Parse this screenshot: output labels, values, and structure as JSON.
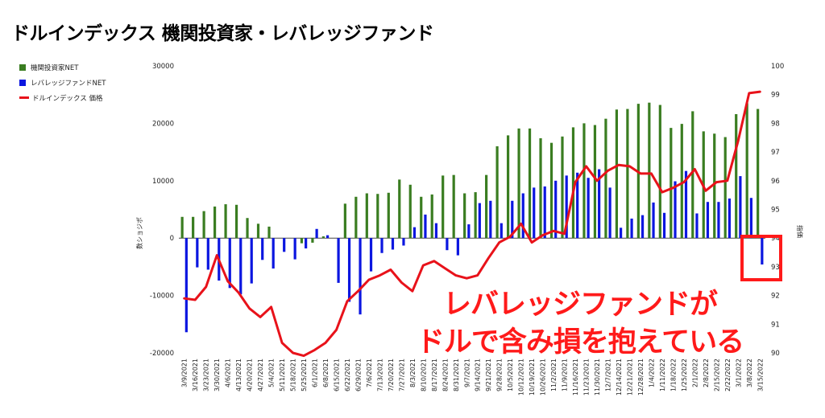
{
  "chart_data": {
    "type": "bar",
    "title": "ドルインデックス 機関投資家・レバレッジファンド",
    "ylabel": "数ショジポ",
    "y2label": "指価",
    "ylim": [
      -20000,
      30000
    ],
    "y2lim": [
      90,
      100
    ],
    "yticks": [
      "30000",
      "20000",
      "10000",
      "0",
      "-10000",
      "-20000"
    ],
    "y2ticks": [
      "100",
      "99",
      "98",
      "97",
      "96",
      "95",
      "94",
      "93",
      "92",
      "91",
      "90"
    ],
    "x": [
      "3/9/2021",
      "3/16/2021",
      "3/23/2021",
      "3/30/2021",
      "4/6/2021",
      "4/13/2021",
      "4/20/2021",
      "4/27/2021",
      "5/4/2021",
      "5/11/2021",
      "5/18/2021",
      "5/25/2021",
      "6/1/2021",
      "6/8/2021",
      "6/15/2021",
      "6/22/2021",
      "6/29/2021",
      "7/6/2021",
      "7/13/2021",
      "7/20/2021",
      "7/27/2021",
      "8/3/2021",
      "8/10/2021",
      "8/17/2021",
      "8/24/2021",
      "8/31/2021",
      "9/7/2021",
      "9/14/2021",
      "9/21/2021",
      "9/28/2021",
      "10/5/2021",
      "10/12/2021",
      "10/19/2021",
      "10/26/2021",
      "11/2/2021",
      "11/9/2021",
      "11/16/2021",
      "11/23/2021",
      "11/30/2021",
      "12/7/2021",
      "12/14/2021",
      "12/21/2021",
      "12/28/2021",
      "1/4/2022",
      "1/11/2022",
      "1/18/2022",
      "1/25/2022",
      "2/1/2022",
      "2/8/2022",
      "2/15/2022",
      "2/22/2022",
      "3/1/2022",
      "3/8/2022",
      "3/15/2022"
    ],
    "xtick_labels": [
      "3/9/2021",
      "3/16/2021",
      "3/23/2021",
      "3/30/2021",
      "4/6/2021",
      "4/13/2021",
      "4/20/2021",
      "4/27/2021",
      "5/4/2021",
      "5/11/2021",
      "5/18/2021",
      "5/25/2021",
      "6/1/2021",
      "6/8/2021",
      "6/15/2021",
      "6/22/2021",
      "6/29/2021",
      "7/6/2021",
      "7/13/2021",
      "7/20/2021",
      "7/27/2021",
      "8/3/2021",
      "8/10/2021",
      "8/17/2021",
      "8/24/2021",
      "8/31/2021",
      "9/7/2021",
      "9/14/2021",
      "9/21/2021",
      "9/28/2021",
      "10/5/2021",
      "10/12/2021",
      "10/19/2021",
      "10/26/2021",
      "11/2/2021",
      "11/9/2021",
      "11/16/2021",
      "11/23/2021",
      "11/30/2021",
      "12/7/2021",
      "12/14/2021",
      "12/21/2021",
      "12/28/2021",
      "1/4/2022",
      "1/11/2022",
      "1/18/2022",
      "1/25/2022",
      "2/1/2022",
      "2/8/2022",
      "2/15/2022",
      "2/22/2022",
      "3/1/2022",
      "3/8/2022",
      "3/15/2022"
    ],
    "series": [
      {
        "name": "機関投資家NET",
        "type": "bar",
        "axis": "left",
        "color": "#3a7d21",
        "values": [
          3700,
          3700,
          4700,
          5500,
          5900,
          5800,
          3500,
          2500,
          2000,
          0,
          0,
          -900,
          -800,
          300,
          0,
          6000,
          7200,
          7800,
          7700,
          7900,
          10200,
          9300,
          7200,
          7600,
          10900,
          11000,
          7800,
          8000,
          11000,
          16000,
          17900,
          19100,
          19100,
          17400,
          16600,
          17700,
          19300,
          20000,
          19700,
          20800,
          22400,
          22500,
          23400,
          23600,
          23200,
          19200,
          19900,
          22100,
          18600,
          18200,
          17600,
          21600,
          23500,
          22500
        ]
      },
      {
        "name": "レバレッジファンドNET",
        "type": "bar",
        "axis": "left",
        "color": "#0b16e0",
        "values": [
          -16400,
          -5100,
          -5500,
          -7400,
          -8700,
          -9800,
          -7900,
          -3800,
          -5300,
          -2400,
          -3700,
          -1800,
          1600,
          500,
          -7800,
          -11100,
          -13300,
          -5800,
          -2600,
          -2000,
          -1300,
          1900,
          4100,
          2600,
          -2100,
          -3000,
          2400,
          6100,
          6500,
          2600,
          6500,
          7800,
          8800,
          9000,
          10000,
          10900,
          11400,
          10500,
          12000,
          8800,
          1800,
          3400,
          4000,
          6200,
          4400,
          9900,
          11700,
          4300,
          6300,
          6300,
          6900,
          10800,
          7000,
          -4600
        ]
      },
      {
        "name": "ドルインデックス 価格",
        "type": "line",
        "axis": "right",
        "color": "#e8121a",
        "values": [
          91.9,
          91.85,
          92.3,
          93.4,
          92.5,
          92.1,
          91.55,
          91.25,
          91.6,
          90.35,
          90.0,
          89.9,
          90.1,
          90.35,
          90.8,
          91.8,
          92.15,
          92.55,
          92.7,
          92.9,
          92.45,
          92.15,
          93.05,
          93.2,
          92.95,
          92.7,
          92.6,
          92.7,
          93.3,
          93.85,
          94.05,
          94.5,
          93.85,
          94.1,
          94.25,
          94.15,
          95.95,
          96.5,
          96.0,
          96.35,
          96.55,
          96.5,
          96.25,
          96.25,
          95.6,
          95.75,
          95.95,
          96.4,
          95.65,
          95.95,
          96.0,
          97.4,
          99.05,
          99.1
        ]
      }
    ],
    "annotations": {
      "line1": "レバレッジファンドが",
      "line2": "ドルで含み損を抱えている",
      "highlight_color": "#ff1a1a"
    },
    "legend_position": "left",
    "grid": false
  }
}
